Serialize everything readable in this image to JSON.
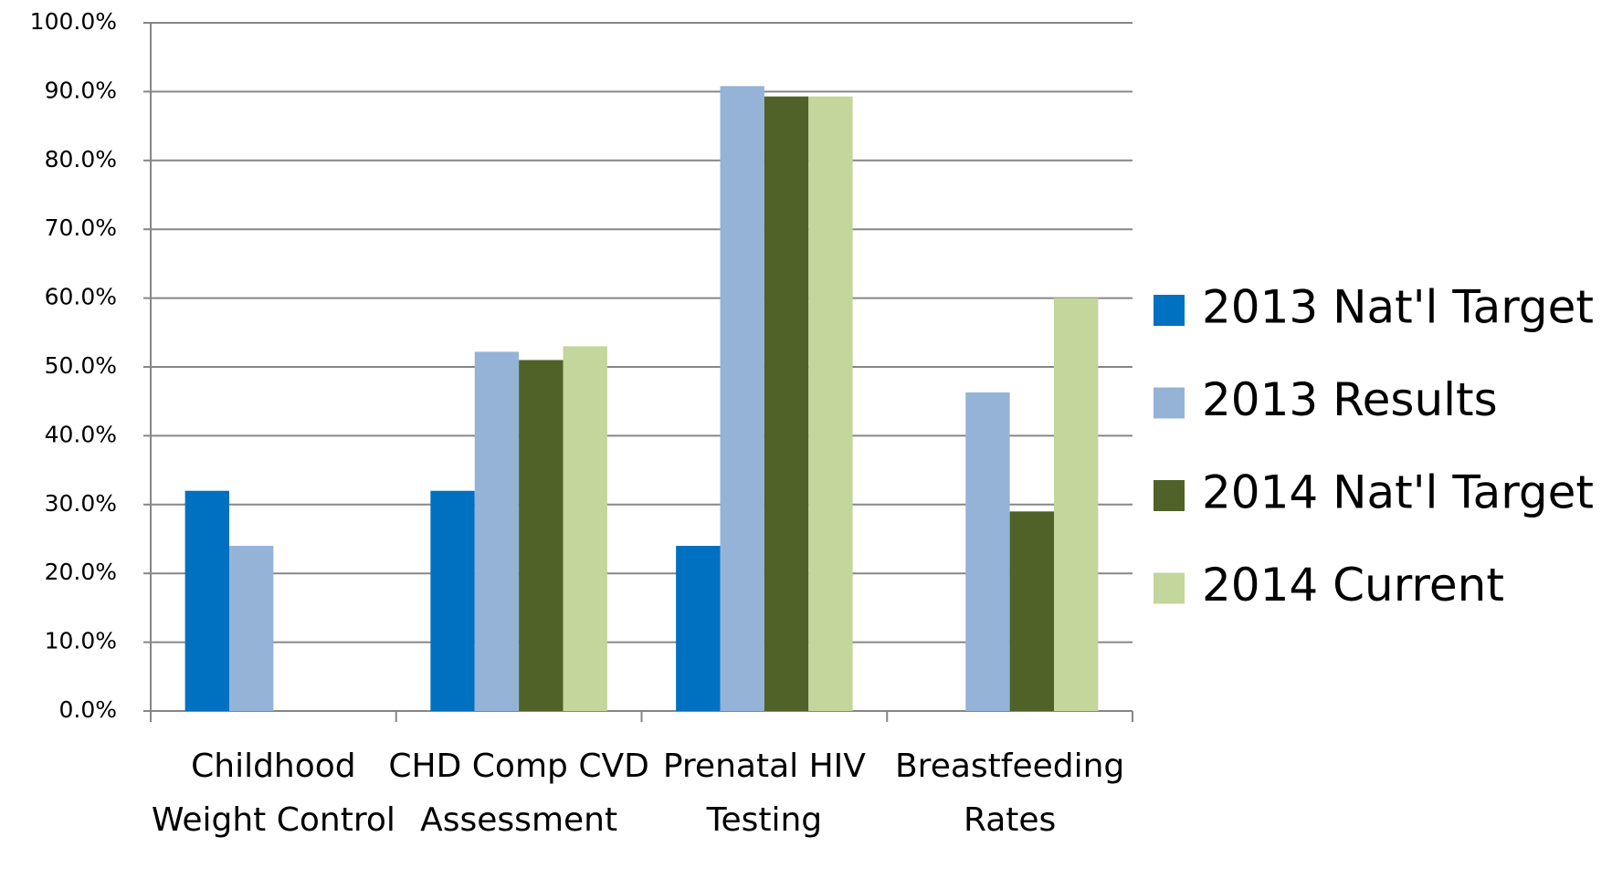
{
  "chart_data": {
    "type": "bar",
    "categories": [
      "Childhood Weight Control",
      "CHD Comp CVD Assessment",
      "Prenatal HIV Testing",
      "Breastfeeding Rates"
    ],
    "series": [
      {
        "name": "2013 Nat'l Target",
        "color": "#0070c0",
        "values": [
          32,
          32,
          24,
          null
        ]
      },
      {
        "name": "2013 Results",
        "color": "#95b3d7",
        "values": [
          24,
          52.2,
          90.8,
          46.3
        ]
      },
      {
        "name": "2014 Nat'l Target",
        "color": "#4f6228",
        "values": [
          null,
          51,
          89.3,
          29
        ]
      },
      {
        "name": "2014 Current",
        "color": "#c3d69b",
        "values": [
          null,
          53,
          89.3,
          60
        ]
      }
    ],
    "ylim": [
      0,
      100
    ],
    "yticks": [
      {
        "value": 0,
        "label": "0.0%"
      },
      {
        "value": 10,
        "label": "10.0%"
      },
      {
        "value": 20,
        "label": "20.0%"
      },
      {
        "value": 30,
        "label": "30.0%"
      },
      {
        "value": 40,
        "label": "40.0%"
      },
      {
        "value": 50,
        "label": "50.0%"
      },
      {
        "value": 60,
        "label": "60.0%"
      },
      {
        "value": 70,
        "label": "70.0%"
      },
      {
        "value": 80,
        "label": "80.0%"
      },
      {
        "value": 90,
        "label": "90.0%"
      },
      {
        "value": 100,
        "label": "100.0%"
      }
    ],
    "grid": true,
    "legend": "right"
  }
}
